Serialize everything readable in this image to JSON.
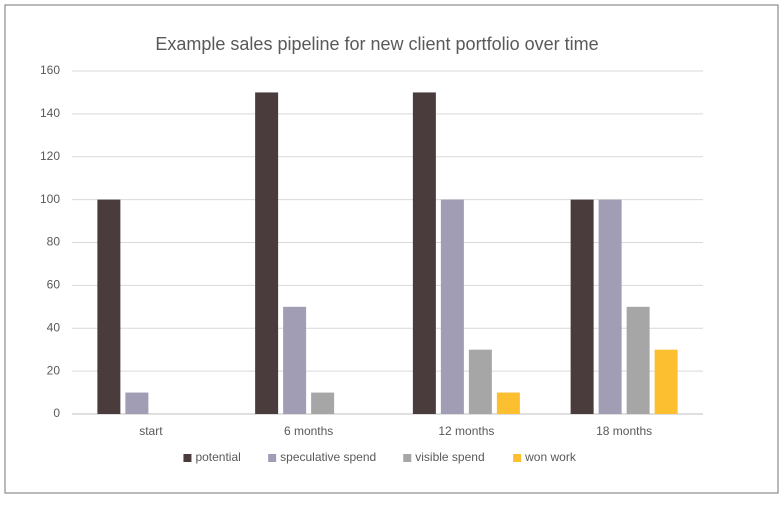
{
  "chart_data": {
    "type": "bar",
    "title": "Example sales pipeline for new client portfolio over time",
    "categories": [
      "start",
      "6 months",
      "12 months",
      "18 months"
    ],
    "series": [
      {
        "name": "potential",
        "color": "#4a3c3d",
        "values": [
          100,
          150,
          150,
          100
        ]
      },
      {
        "name": "speculative spend",
        "color": "#a09db5",
        "values": [
          10,
          50,
          100,
          100
        ]
      },
      {
        "name": "visible spend",
        "color": "#a6a6a6",
        "values": [
          0,
          10,
          30,
          50
        ]
      },
      {
        "name": "won work",
        "color": "#fbbf2f",
        "values": [
          0,
          0,
          10,
          30
        ]
      }
    ],
    "ylim": [
      0,
      160
    ],
    "yticks": [
      0,
      20,
      40,
      60,
      80,
      100,
      120,
      140,
      160
    ],
    "grid": true,
    "legend": "bottom"
  }
}
